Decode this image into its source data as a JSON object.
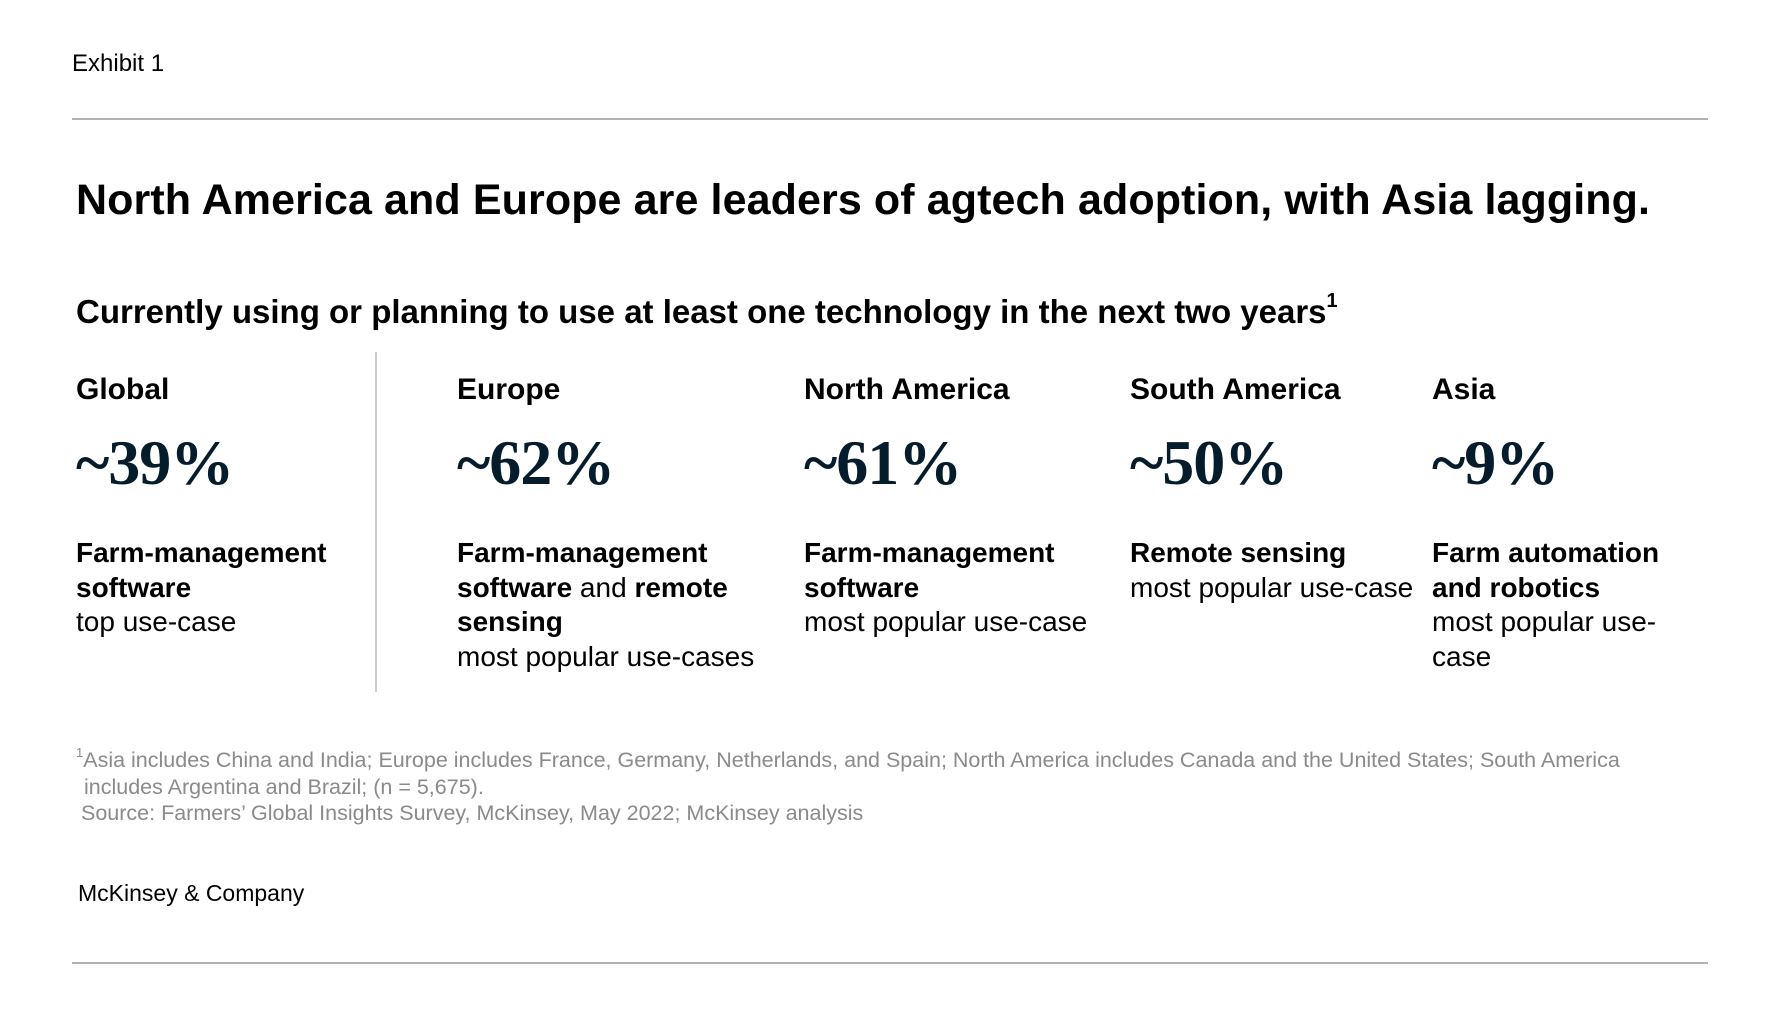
{
  "exhibit_label": "Exhibit 1",
  "title": "North America and Europe are leaders of agtech adoption, with Asia lagging.",
  "subtitle": "Currently using or planning to use at least one technology in the next two years",
  "subtitle_footnote_marker": "1",
  "chart_data": {
    "type": "table",
    "title": "North America and Europe are leaders of agtech adoption, with Asia lagging.",
    "subtitle": "Currently using or planning to use at least one technology in the next two years",
    "regions": [
      {
        "name": "Global",
        "value": 39,
        "display": "~39%",
        "usecase_parts": [
          {
            "text": "Farm-management software",
            "bold": true
          },
          {
            "text": "top use-case",
            "bold": false,
            "newline": true
          }
        ]
      },
      {
        "name": "Europe",
        "value": 62,
        "display": "~62%",
        "usecase_parts": [
          {
            "text": "Farm-management software",
            "bold": true
          },
          {
            "text": " and ",
            "bold": false
          },
          {
            "text": "remote sensing",
            "bold": true
          },
          {
            "text": "most popular use-cases",
            "bold": false,
            "newline": true
          }
        ]
      },
      {
        "name": "North America",
        "value": 61,
        "display": "~61%",
        "usecase_parts": [
          {
            "text": "Farm-management software",
            "bold": true
          },
          {
            "text": "most popular use-case",
            "bold": false,
            "newline": true
          }
        ]
      },
      {
        "name": "South America",
        "value": 50,
        "display": "~50%",
        "usecase_parts": [
          {
            "text": "Remote sensing",
            "bold": true
          },
          {
            "text": "most popular use-case",
            "bold": false,
            "newline": true
          }
        ]
      },
      {
        "name": "Asia",
        "value": 9,
        "display": "~9%",
        "usecase_parts": [
          {
            "text": "Farm automation and robotics",
            "bold": true
          },
          {
            "text": "most popular use-case",
            "bold": false,
            "newline": true
          }
        ]
      }
    ]
  },
  "footnote": {
    "marker": "1",
    "line1": "Asia includes China and India; Europe includes France, Germany, Netherlands, and Spain; North America includes Canada and the United States; South America",
    "line2": "includes Argentina and Brazil; (n = 5,675).",
    "source": "Source: Farmers’ Global Insights Survey, McKinsey, May 2022; McKinsey analysis"
  },
  "brand": "McKinsey & Company",
  "colors": {
    "text": "#000000",
    "value": "#051c2c",
    "footnote": "#8a8a8a",
    "rule": "#b3b3b3"
  }
}
